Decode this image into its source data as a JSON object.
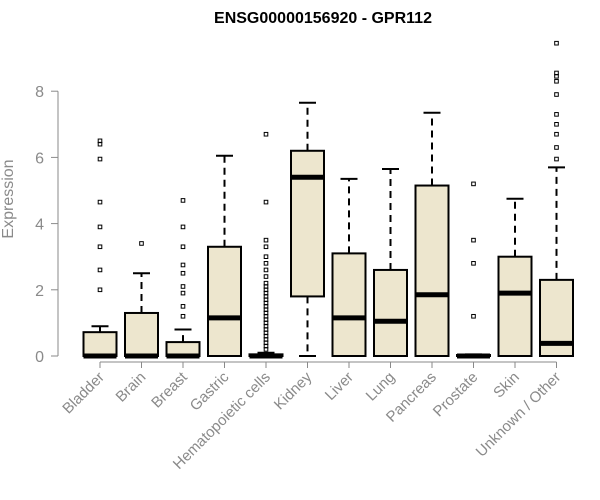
{
  "chart_data": {
    "type": "boxplot",
    "title": "ENSG00000156920 - GPR112",
    "ylabel": "Expression",
    "xlabel": "",
    "ylim": [
      0,
      9.5
    ],
    "yticks": [
      0,
      2,
      4,
      6,
      8
    ],
    "grid": false,
    "legend": "none",
    "box_color": "#ede6ce",
    "categories": [
      "Bladder",
      "Brain",
      "Breast",
      "Gastric",
      "Hematopoietic cells",
      "Kidney",
      "Liver",
      "Lung",
      "Pancreas",
      "Prostate",
      "Skin",
      "Unknown / Other"
    ],
    "boxes": [
      {
        "category": "Bladder",
        "whisker_low": 0,
        "q1": 0,
        "median": 0,
        "q3": 0.72,
        "whisker_high": 0.9,
        "outliers": [
          2.0,
          2.6,
          3.3,
          3.9,
          4.65,
          5.95,
          6.4,
          6.5
        ]
      },
      {
        "category": "Brain",
        "whisker_low": 0,
        "q1": 0,
        "median": 0,
        "q3": 1.3,
        "whisker_high": 2.5,
        "outliers": [
          3.4
        ]
      },
      {
        "category": "Breast",
        "whisker_low": 0,
        "q1": 0,
        "median": 0,
        "q3": 0.42,
        "whisker_high": 0.8,
        "outliers": [
          1.2,
          1.5,
          1.9,
          2.1,
          2.5,
          2.75,
          3.3,
          3.9,
          4.7
        ]
      },
      {
        "category": "Gastric",
        "whisker_low": 0,
        "q1": 0,
        "median": 1.15,
        "q3": 3.3,
        "whisker_high": 6.05,
        "outliers": []
      },
      {
        "category": "Hematopoietic cells",
        "whisker_low": 0,
        "q1": 0,
        "median": 0,
        "q3": 0.05,
        "whisker_high": 0.1,
        "outliers": [
          0.2,
          0.3,
          0.4,
          0.5,
          0.6,
          0.7,
          0.8,
          0.9,
          1.0,
          1.1,
          1.2,
          1.3,
          1.4,
          1.5,
          1.6,
          1.7,
          1.8,
          1.9,
          2.0,
          2.1,
          2.2,
          2.4,
          2.6,
          2.8,
          3.0,
          3.3,
          3.5,
          4.65,
          6.7
        ]
      },
      {
        "category": "Kidney",
        "whisker_low": 0,
        "q1": 1.8,
        "median": 5.4,
        "q3": 6.2,
        "whisker_high": 7.65,
        "outliers": []
      },
      {
        "category": "Liver",
        "whisker_low": 0,
        "q1": 0,
        "median": 1.15,
        "q3": 3.1,
        "whisker_high": 5.35,
        "outliers": []
      },
      {
        "category": "Lung",
        "whisker_low": 0,
        "q1": 0,
        "median": 1.05,
        "q3": 2.6,
        "whisker_high": 5.65,
        "outliers": []
      },
      {
        "category": "Pancreas",
        "whisker_low": 0,
        "q1": 0,
        "median": 1.85,
        "q3": 5.15,
        "whisker_high": 7.35,
        "outliers": []
      },
      {
        "category": "Prostate",
        "whisker_low": 0,
        "q1": 0,
        "median": 0,
        "q3": 0.03,
        "whisker_high": 0.05,
        "outliers": [
          1.2,
          2.8,
          3.5,
          5.2
        ]
      },
      {
        "category": "Skin",
        "whisker_low": 0,
        "q1": 0,
        "median": 1.9,
        "q3": 3.0,
        "whisker_high": 4.75,
        "outliers": []
      },
      {
        "category": "Unknown / Other",
        "whisker_low": 0,
        "q1": 0,
        "median": 0.38,
        "q3": 2.3,
        "whisker_high": 5.7,
        "outliers": [
          5.95,
          6.3,
          6.7,
          7.0,
          7.3,
          7.9,
          8.3,
          8.45,
          8.55,
          9.45
        ]
      }
    ]
  }
}
